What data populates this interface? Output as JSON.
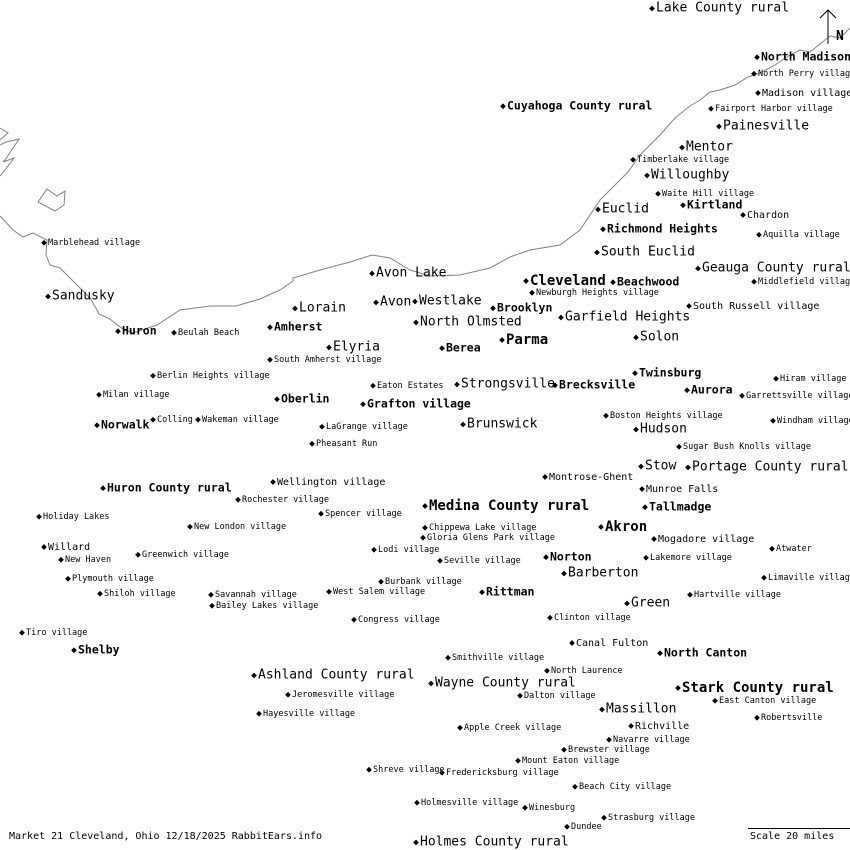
{
  "map": {
    "coastline_color": "#808080",
    "north_label": "N",
    "footer": {
      "caption": "Market 21 Cleveland, Ohio 12/18/2025 RabbitEars.info",
      "scale": "Scale 20 miles"
    },
    "places": [
      {
        "name": "Lake County rural",
        "tier": "m"
      },
      {
        "name": "North Madison",
        "tier": "b"
      },
      {
        "name": "North Perry village",
        "tier": "s"
      },
      {
        "name": "Madison village",
        "tier": "s2"
      },
      {
        "name": "Cuyahoga County rural",
        "tier": "b"
      },
      {
        "name": "Fairport Harbor village",
        "tier": "s"
      },
      {
        "name": "Painesville",
        "tier": "m"
      },
      {
        "name": "Mentor",
        "tier": "m"
      },
      {
        "name": "Timberlake village",
        "tier": "s"
      },
      {
        "name": "Willoughby",
        "tier": "m"
      },
      {
        "name": "Waite Hill village",
        "tier": "s"
      },
      {
        "name": "Kirtland",
        "tier": "b"
      },
      {
        "name": "Euclid",
        "tier": "m"
      },
      {
        "name": "Chardon",
        "tier": "s2"
      },
      {
        "name": "Richmond Heights",
        "tier": "b"
      },
      {
        "name": "Aquilla village",
        "tier": "s"
      },
      {
        "name": "Marblehead village",
        "tier": "s"
      },
      {
        "name": "South Euclid",
        "tier": "m"
      },
      {
        "name": "Geauga County rural",
        "tier": "m"
      },
      {
        "name": "Avon Lake",
        "tier": "m"
      },
      {
        "name": "Cleveland",
        "tier": "B"
      },
      {
        "name": "Beachwood",
        "tier": "b"
      },
      {
        "name": "Middlefield village",
        "tier": "s"
      },
      {
        "name": "Sandusky",
        "tier": "m"
      },
      {
        "name": "Newburgh Heights village",
        "tier": "s"
      },
      {
        "name": "Avon",
        "tier": "m"
      },
      {
        "name": "Westlake",
        "tier": "m"
      },
      {
        "name": "Brooklyn",
        "tier": "b"
      },
      {
        "name": "Lorain",
        "tier": "m"
      },
      {
        "name": "South Russell village",
        "tier": "s2"
      },
      {
        "name": "Garfield Heights",
        "tier": "m"
      },
      {
        "name": "North Olmsted",
        "tier": "m"
      },
      {
        "name": "Amherst",
        "tier": "b"
      },
      {
        "name": "Huron",
        "tier": "b"
      },
      {
        "name": "Beulah Beach",
        "tier": "s"
      },
      {
        "name": "Solon",
        "tier": "m"
      },
      {
        "name": "Parma",
        "tier": "B"
      },
      {
        "name": "Elyria",
        "tier": "m"
      },
      {
        "name": "Berea",
        "tier": "b"
      },
      {
        "name": "South Amherst village",
        "tier": "s"
      },
      {
        "name": "Twinsburg",
        "tier": "b"
      },
      {
        "name": "Berlin Heights village",
        "tier": "s"
      },
      {
        "name": "Hiram village",
        "tier": "s"
      },
      {
        "name": "Strongsville",
        "tier": "m"
      },
      {
        "name": "Brecksville",
        "tier": "b"
      },
      {
        "name": "Eaton Estates",
        "tier": "s"
      },
      {
        "name": "Aurora",
        "tier": "b"
      },
      {
        "name": "Milan village",
        "tier": "s"
      },
      {
        "name": "Garrettsville village",
        "tier": "s"
      },
      {
        "name": "Oberlin",
        "tier": "b"
      },
      {
        "name": "Grafton village",
        "tier": "b"
      },
      {
        "name": "Boston Heights village",
        "tier": "s"
      },
      {
        "name": "Colling",
        "tier": "s"
      },
      {
        "name": "Wakeman village",
        "tier": "s"
      },
      {
        "name": "Windham village",
        "tier": "s"
      },
      {
        "name": "Norwalk",
        "tier": "b"
      },
      {
        "name": "Brunswick",
        "tier": "m"
      },
      {
        "name": "LaGrange village",
        "tier": "s"
      },
      {
        "name": "Hudson",
        "tier": "m"
      },
      {
        "name": "Pheasant Run",
        "tier": "s"
      },
      {
        "name": "Sugar Bush Knolls village",
        "tier": "s"
      },
      {
        "name": "Stow",
        "tier": "m"
      },
      {
        "name": "Portage County rural",
        "tier": "m"
      },
      {
        "name": "Montrose-Ghent",
        "tier": "s2"
      },
      {
        "name": "Wellington village",
        "tier": "s2"
      },
      {
        "name": "Huron County rural",
        "tier": "b"
      },
      {
        "name": "Munroe Falls",
        "tier": "s2"
      },
      {
        "name": "Rochester village",
        "tier": "s"
      },
      {
        "name": "Medina County rural",
        "tier": "B"
      },
      {
        "name": "Tallmadge",
        "tier": "b"
      },
      {
        "name": "Spencer village",
        "tier": "s"
      },
      {
        "name": "Holiday Lakes",
        "tier": "s"
      },
      {
        "name": "Akron",
        "tier": "B"
      },
      {
        "name": "New London village",
        "tier": "s"
      },
      {
        "name": "Chippewa Lake village",
        "tier": "s"
      },
      {
        "name": "Gloria Glens Park village",
        "tier": "s"
      },
      {
        "name": "Mogadore village",
        "tier": "s2"
      },
      {
        "name": "Willard",
        "tier": "s2"
      },
      {
        "name": "Lodi village",
        "tier": "s"
      },
      {
        "name": "Atwater",
        "tier": "s"
      },
      {
        "name": "Greenwich village",
        "tier": "s"
      },
      {
        "name": "Norton",
        "tier": "b"
      },
      {
        "name": "Lakemore village",
        "tier": "s"
      },
      {
        "name": "New Haven",
        "tier": "s"
      },
      {
        "name": "Seville village",
        "tier": "s"
      },
      {
        "name": "Barberton",
        "tier": "m"
      },
      {
        "name": "Plymouth village",
        "tier": "s"
      },
      {
        "name": "Limaville village",
        "tier": "s"
      },
      {
        "name": "Burbank village",
        "tier": "s"
      },
      {
        "name": "Rittman",
        "tier": "b"
      },
      {
        "name": "West Salem village",
        "tier": "s"
      },
      {
        "name": "Shiloh village",
        "tier": "s"
      },
      {
        "name": "Savannah village",
        "tier": "s"
      },
      {
        "name": "Hartville village",
        "tier": "s"
      },
      {
        "name": "Bailey Lakes village",
        "tier": "s"
      },
      {
        "name": "Green",
        "tier": "m"
      },
      {
        "name": "Clinton village",
        "tier": "s"
      },
      {
        "name": "Congress village",
        "tier": "s"
      },
      {
        "name": "Tiro village",
        "tier": "s"
      },
      {
        "name": "Canal Fulton",
        "tier": "s2"
      },
      {
        "name": "Shelby",
        "tier": "b"
      },
      {
        "name": "North Canton",
        "tier": "b"
      },
      {
        "name": "Smithville village",
        "tier": "s"
      },
      {
        "name": "North Laurence",
        "tier": "s"
      },
      {
        "name": "Ashland County rural",
        "tier": "m"
      },
      {
        "name": "Wayne County rural",
        "tier": "m"
      },
      {
        "name": "Stark County rural",
        "tier": "B"
      },
      {
        "name": "Jeromesville village",
        "tier": "s"
      },
      {
        "name": "Dalton village",
        "tier": "s"
      },
      {
        "name": "East Canton village",
        "tier": "s"
      },
      {
        "name": "Massillon",
        "tier": "m"
      },
      {
        "name": "Hayesville village",
        "tier": "s"
      },
      {
        "name": "Robertsville",
        "tier": "s"
      },
      {
        "name": "Richville",
        "tier": "s2"
      },
      {
        "name": "Apple Creek village",
        "tier": "s"
      },
      {
        "name": "Navarre village",
        "tier": "s"
      },
      {
        "name": "Brewster village",
        "tier": "s"
      },
      {
        "name": "Mount Eaton village",
        "tier": "s"
      },
      {
        "name": "Shreve village",
        "tier": "s"
      },
      {
        "name": "Fredericksburg village",
        "tier": "s"
      },
      {
        "name": "Beach City village",
        "tier": "s"
      },
      {
        "name": "Holmesville village",
        "tier": "s"
      },
      {
        "name": "Winesburg",
        "tier": "s"
      },
      {
        "name": "Strasburg village",
        "tier": "s"
      },
      {
        "name": "Dundee",
        "tier": "s"
      },
      {
        "name": "Holmes County rural",
        "tier": "m"
      }
    ]
  }
}
